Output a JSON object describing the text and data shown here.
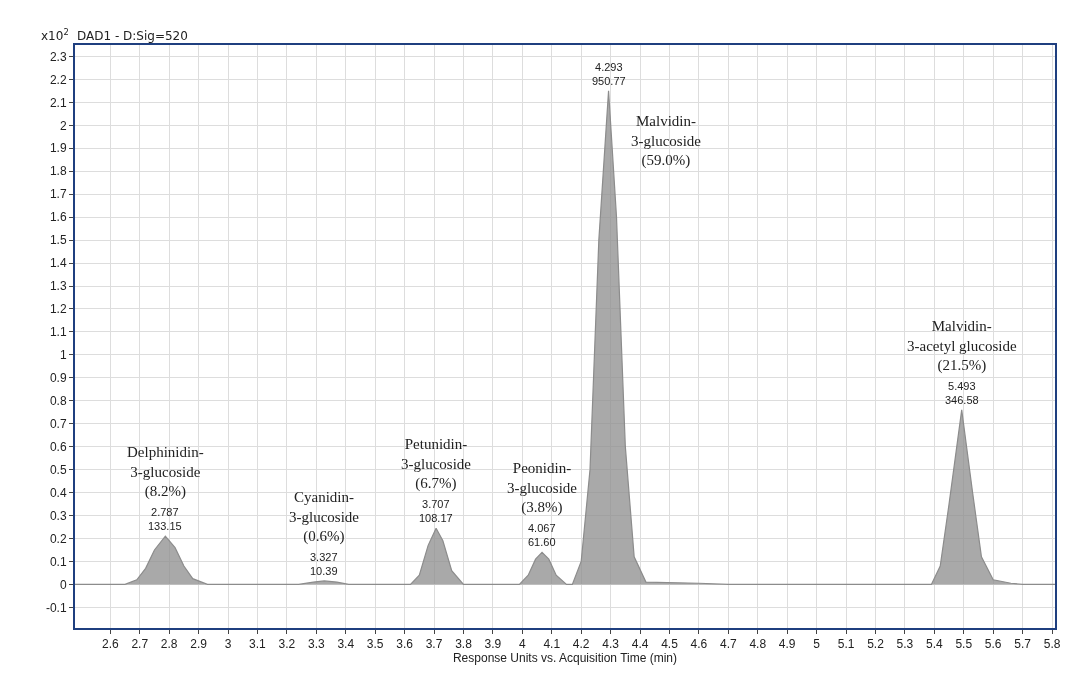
{
  "chart_data": {
    "type": "area",
    "title": "DAD1 - D:Sig=520",
    "ylabel": "x10$^{2}$",
    "xlabel": "Response Units vs. Acquisition Time (min)",
    "series": [
      {
        "color": "#8c8c8c",
        "x": [
          2.48,
          2.65,
          2.69,
          2.72,
          2.75,
          2.787,
          2.82,
          2.85,
          2.88,
          2.93,
          3.24,
          3.29,
          3.327,
          3.37,
          3.41,
          3.62,
          3.65,
          3.68,
          3.707,
          3.73,
          3.76,
          3.8,
          3.99,
          4.02,
          4.045,
          4.067,
          4.09,
          4.115,
          4.15,
          4.17,
          4.2,
          4.23,
          4.26,
          4.293,
          4.32,
          4.35,
          4.38,
          4.42,
          4.6,
          4.7,
          5.39,
          5.42,
          5.45,
          5.493,
          5.53,
          5.56,
          5.6,
          5.66,
          5.7,
          5.81
        ],
        "values": [
          0,
          0,
          0.02,
          0.07,
          0.15,
          0.21,
          0.16,
          0.08,
          0.025,
          0,
          0,
          0.01,
          0.015,
          0.01,
          0,
          0,
          0.04,
          0.17,
          0.245,
          0.19,
          0.06,
          0,
          0,
          0.04,
          0.11,
          0.14,
          0.11,
          0.04,
          0,
          0,
          0.1,
          0.5,
          1.5,
          2.15,
          1.6,
          0.6,
          0.12,
          0.01,
          0.005,
          0,
          0,
          0.08,
          0.35,
          0.76,
          0.4,
          0.12,
          0.02,
          0.005,
          0,
          0
        ]
      }
    ],
    "xlim": [
      2.48,
      5.81
    ],
    "ylim": [
      -0.19,
      2.35
    ],
    "xticks": [
      2.6,
      2.7,
      2.8,
      2.9,
      3,
      3.1,
      3.2,
      3.3,
      3.4,
      3.5,
      3.6,
      3.7,
      3.8,
      3.9,
      4,
      4.1,
      4.2,
      4.3,
      4.4,
      4.5,
      4.6,
      4.7,
      4.8,
      4.9,
      5,
      5.1,
      5.2,
      5.3,
      5.4,
      5.5,
      5.6,
      5.7,
      5.8
    ],
    "yticks": [
      -0.1,
      0,
      0.1,
      0.2,
      0.3,
      0.4,
      0.5,
      0.6,
      0.7,
      0.8,
      0.9,
      1,
      1.1,
      1.2,
      1.3,
      1.4,
      1.5,
      1.6,
      1.7,
      1.8,
      1.9,
      2,
      2.1,
      2.2,
      2.3
    ],
    "grid": true,
    "legend": false,
    "marker": "none",
    "line_style": "solid",
    "annotations": [
      {
        "text": "Delphinidin-\n3-glucoside\n(8.2%)",
        "x": 2.787,
        "y": 0.21
      },
      {
        "text": "2.787\n133.15",
        "x": 2.787,
        "y": 0.21
      },
      {
        "text": "Cyanidin-\n3-glucoside\n(0.6%)",
        "x": 3.327,
        "y": 0.015
      },
      {
        "text": "3.327\n10.39",
        "x": 3.327,
        "y": 0.015
      },
      {
        "text": "Petunidin-\n3-glucoside\n(6.7%)",
        "x": 3.707,
        "y": 0.245
      },
      {
        "text": "3.707\n108.17",
        "x": 3.707,
        "y": 0.245
      },
      {
        "text": "Peonidin-\n3-glucoside\n(3.8%)",
        "x": 4.067,
        "y": 0.14
      },
      {
        "text": "4.067\n61.60",
        "x": 4.067,
        "y": 0.14
      },
      {
        "text": "Malvidin-\n3-glucoside\n(59.0%)",
        "x": 4.293,
        "y": 2.15
      },
      {
        "text": "4.293\n950.77",
        "x": 4.293,
        "y": 2.15
      },
      {
        "text": "Malvidin-\n3-acetyl glucoside\n(21.5%)",
        "x": 5.493,
        "y": 0.76
      },
      {
        "text": "5.493\n346.58",
        "x": 5.493,
        "y": 0.76
      }
    ]
  }
}
